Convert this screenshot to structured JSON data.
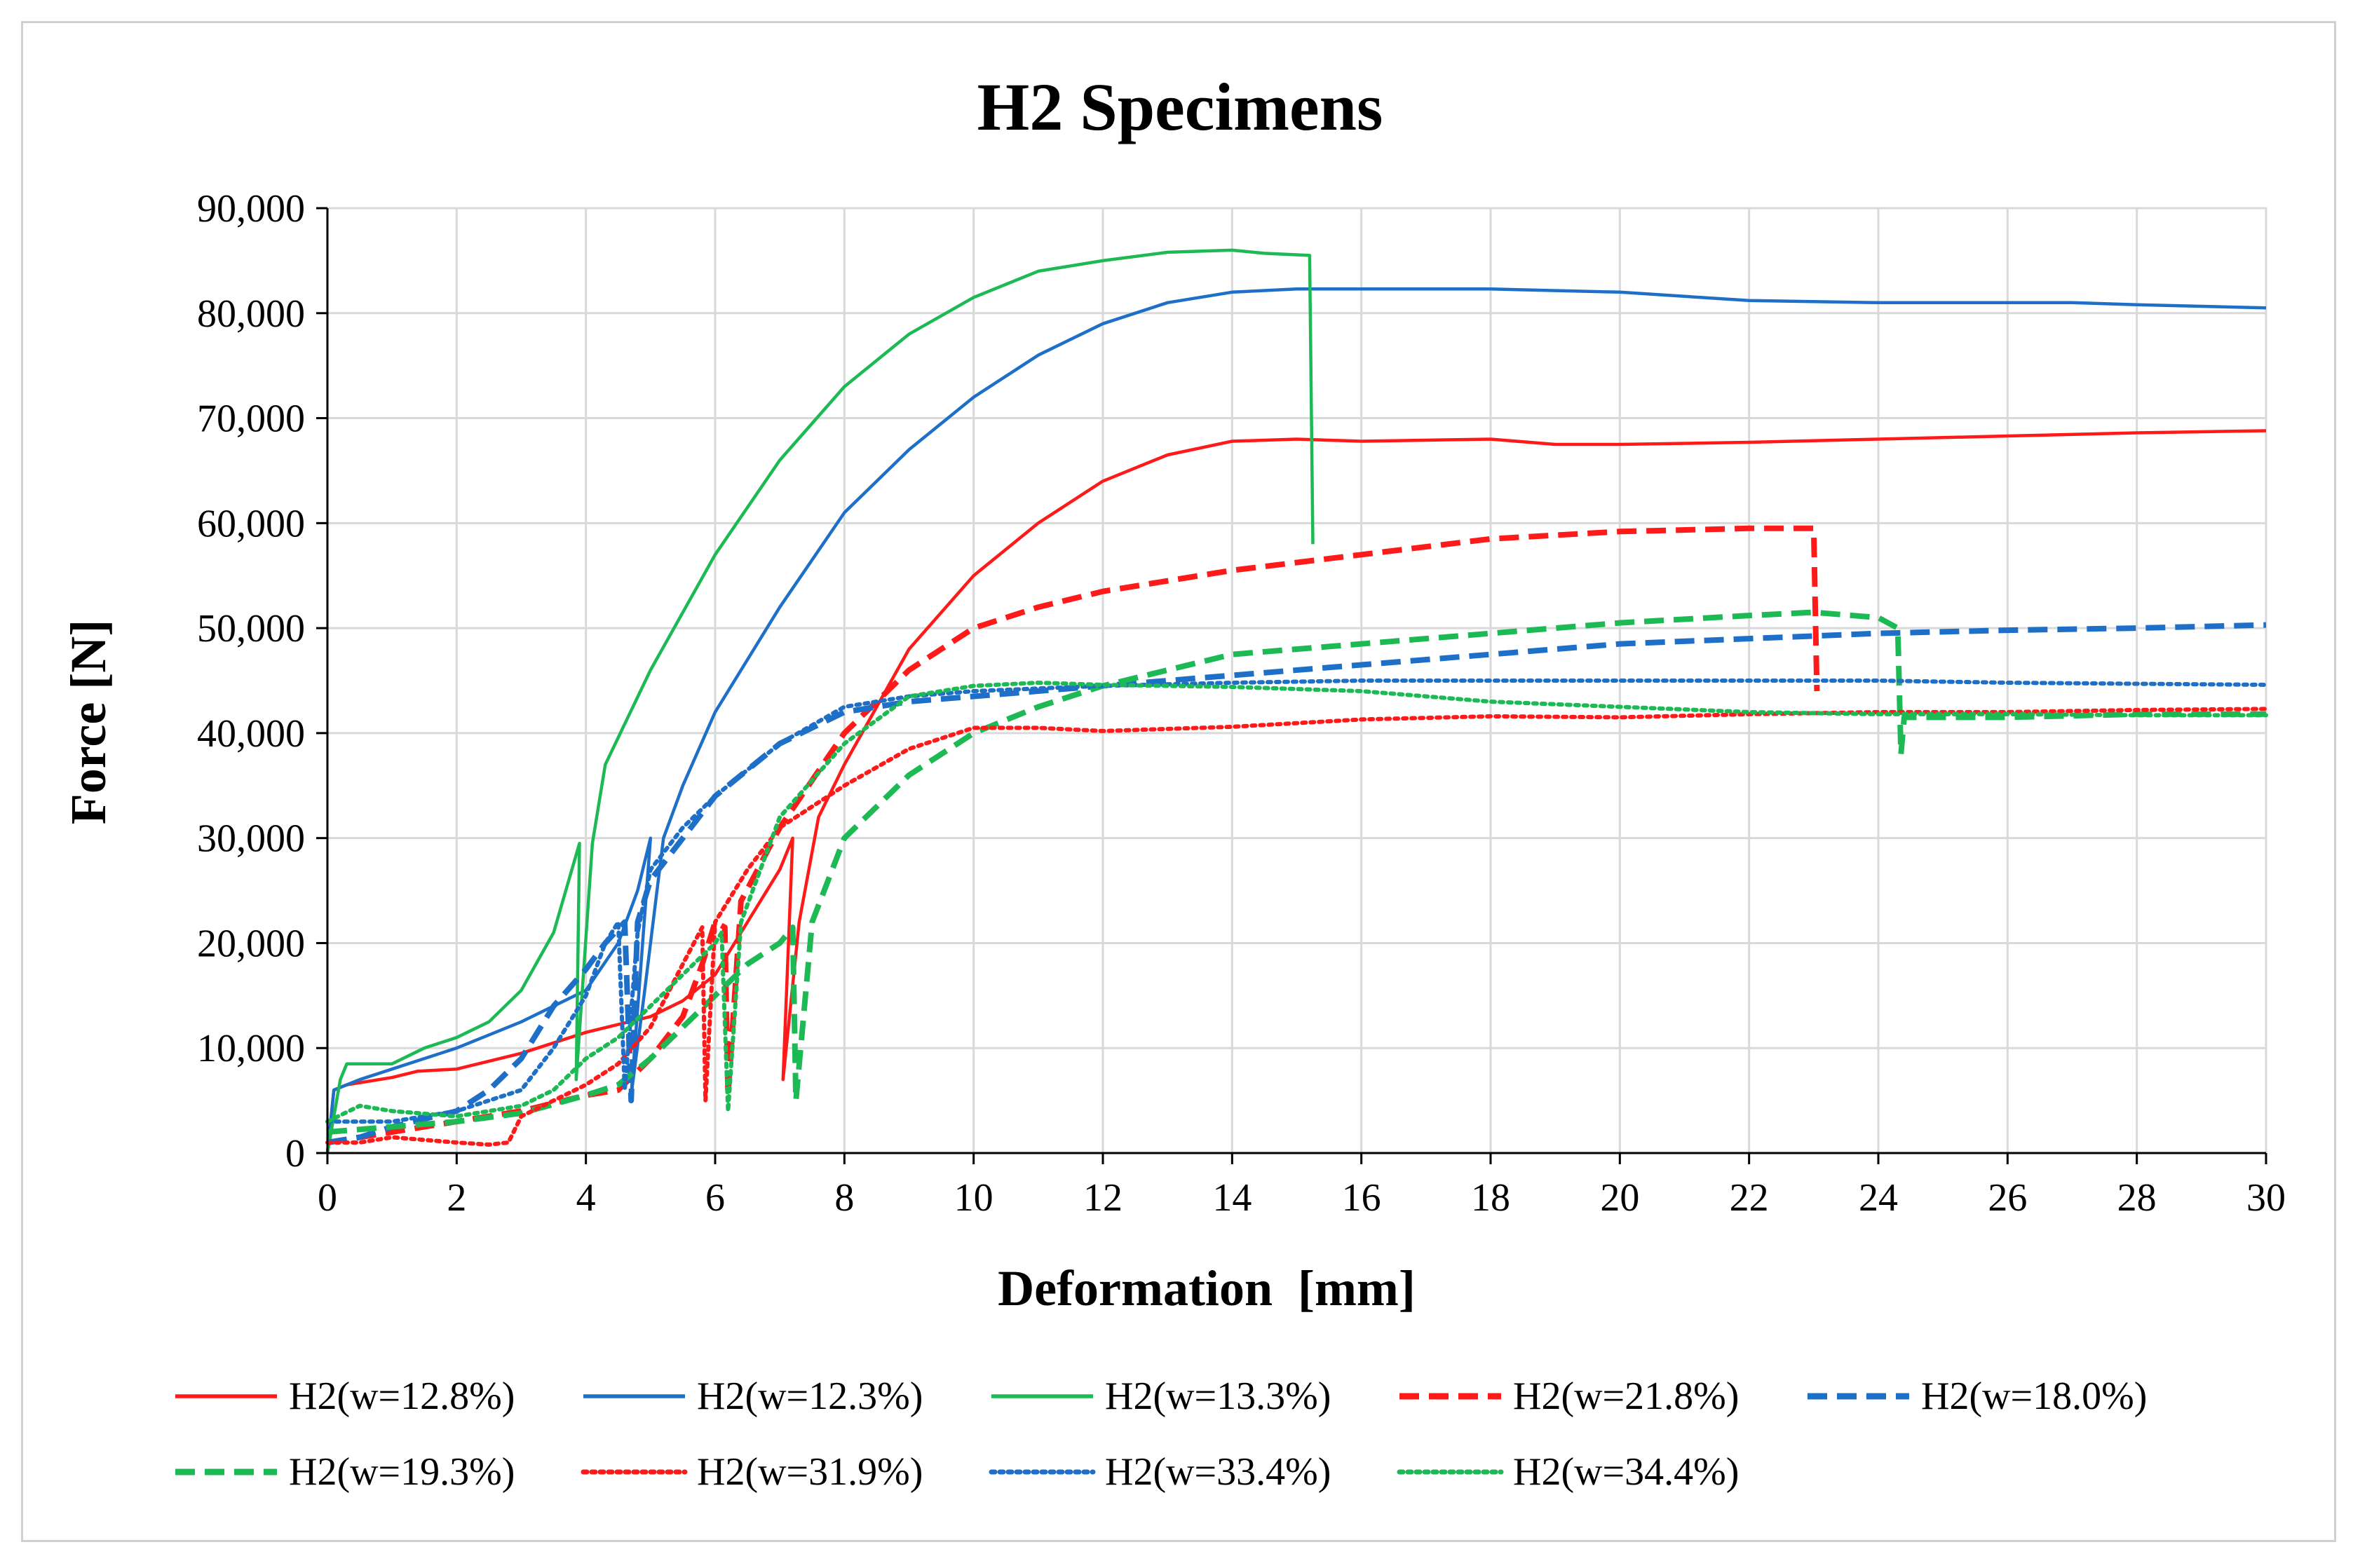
{
  "chart_data": {
    "type": "line",
    "title": "H2 Specimens",
    "xlabel": "Deformation  [mm]",
    "ylabel": "Force [N]",
    "xlim": [
      0,
      30
    ],
    "ylim": [
      0,
      90000
    ],
    "grid": true,
    "legend_position": "bottom",
    "x_ticks": [
      0,
      2,
      4,
      6,
      8,
      10,
      12,
      14,
      16,
      18,
      20,
      22,
      24,
      26,
      28,
      30
    ],
    "y_ticks": [
      0,
      10000,
      20000,
      30000,
      40000,
      50000,
      60000,
      70000,
      80000,
      90000
    ],
    "y_tick_labels": [
      "0",
      "10,000",
      "20,000",
      "30,000",
      "40,000",
      "50,000",
      "60,000",
      "70,000",
      "80,000",
      "90,000"
    ],
    "series": [
      {
        "name": "H2(w=12.8%)",
        "color": "#ff1a1a",
        "dash": "solid",
        "points": [
          [
            0,
            0
          ],
          [
            0.1,
            6000
          ],
          [
            0.3,
            6500
          ],
          [
            1,
            7200
          ],
          [
            1.4,
            7800
          ],
          [
            2,
            8000
          ],
          [
            3,
            9500
          ],
          [
            4,
            11500
          ],
          [
            5,
            13000
          ],
          [
            5.5,
            14500
          ],
          [
            6,
            17000
          ],
          [
            6.5,
            22000
          ],
          [
            7,
            27000
          ],
          [
            7.2,
            30000
          ],
          [
            7.05,
            7000
          ],
          [
            7.3,
            22000
          ],
          [
            7.6,
            32000
          ],
          [
            8,
            37000
          ],
          [
            9,
            48000
          ],
          [
            10,
            55000
          ],
          [
            11,
            60000
          ],
          [
            12,
            64000
          ],
          [
            13,
            66500
          ],
          [
            14,
            67800
          ],
          [
            15,
            68000
          ],
          [
            16,
            67800
          ],
          [
            18,
            68000
          ],
          [
            19,
            67500
          ],
          [
            20,
            67500
          ],
          [
            22,
            67700
          ],
          [
            24,
            68000
          ],
          [
            26,
            68300
          ],
          [
            28,
            68600
          ],
          [
            30,
            68800
          ]
        ]
      },
      {
        "name": "H2(w=12.3%)",
        "color": "#1e6fc8",
        "dash": "solid",
        "points": [
          [
            0,
            0
          ],
          [
            0.1,
            6000
          ],
          [
            0.5,
            7000
          ],
          [
            1,
            8000
          ],
          [
            2,
            10000
          ],
          [
            3,
            12500
          ],
          [
            4,
            15500
          ],
          [
            4.5,
            20000
          ],
          [
            4.8,
            25000
          ],
          [
            5,
            30000
          ],
          [
            4.7,
            5500
          ],
          [
            4.9,
            15000
          ],
          [
            5.2,
            30000
          ],
          [
            5.5,
            35000
          ],
          [
            6,
            42000
          ],
          [
            7,
            52000
          ],
          [
            8,
            61000
          ],
          [
            9,
            67000
          ],
          [
            10,
            72000
          ],
          [
            11,
            76000
          ],
          [
            12,
            79000
          ],
          [
            13,
            81000
          ],
          [
            14,
            82000
          ],
          [
            15,
            82300
          ],
          [
            16,
            82300
          ],
          [
            18,
            82300
          ],
          [
            20,
            82000
          ],
          [
            22,
            81200
          ],
          [
            24,
            81000
          ],
          [
            26,
            81000
          ],
          [
            27,
            81000
          ],
          [
            28,
            80800
          ],
          [
            30,
            80500
          ]
        ]
      },
      {
        "name": "H2(w=13.3%)",
        "color": "#1db954",
        "dash": "solid",
        "points": [
          [
            0,
            0
          ],
          [
            0.2,
            7000
          ],
          [
            0.3,
            8500
          ],
          [
            1,
            8500
          ],
          [
            1.5,
            10000
          ],
          [
            2,
            11000
          ],
          [
            2.5,
            12500
          ],
          [
            3,
            15500
          ],
          [
            3.5,
            21000
          ],
          [
            3.9,
            29500
          ],
          [
            3.85,
            7000
          ],
          [
            4.1,
            29500
          ],
          [
            4.3,
            37000
          ],
          [
            5,
            46000
          ],
          [
            6,
            57000
          ],
          [
            7,
            66000
          ],
          [
            8,
            73000
          ],
          [
            9,
            78000
          ],
          [
            10,
            81500
          ],
          [
            11,
            84000
          ],
          [
            12,
            85000
          ],
          [
            13,
            85800
          ],
          [
            14,
            86000
          ],
          [
            14.5,
            85700
          ],
          [
            15.2,
            85500
          ],
          [
            15.25,
            58000
          ]
        ]
      },
      {
        "name": "H2(w=21.8%)",
        "color": "#ff1a1a",
        "dash": "dashed",
        "points": [
          [
            0,
            1000
          ],
          [
            0.5,
            1500
          ],
          [
            1,
            2000
          ],
          [
            2,
            3000
          ],
          [
            3,
            4000
          ],
          [
            4,
            5500
          ],
          [
            4.5,
            6000
          ],
          [
            5,
            9000
          ],
          [
            5.5,
            13000
          ],
          [
            5.8,
            18000
          ],
          [
            6,
            22000
          ],
          [
            6.15,
            21500
          ],
          [
            6.2,
            5500
          ],
          [
            6.4,
            24000
          ],
          [
            7,
            31000
          ],
          [
            8,
            40000
          ],
          [
            9,
            46000
          ],
          [
            10,
            50000
          ],
          [
            11,
            52000
          ],
          [
            12,
            53500
          ],
          [
            14,
            55500
          ],
          [
            16,
            57000
          ],
          [
            18,
            58500
          ],
          [
            20,
            59200
          ],
          [
            22,
            59500
          ],
          [
            23,
            59500
          ],
          [
            23.05,
            44000
          ]
        ]
      },
      {
        "name": "H2(w=18.0%)",
        "color": "#1e6fc8",
        "dash": "dashed",
        "points": [
          [
            0,
            1000
          ],
          [
            0.5,
            1500
          ],
          [
            1,
            2500
          ],
          [
            2,
            4000
          ],
          [
            2.5,
            6000
          ],
          [
            3,
            9000
          ],
          [
            3.5,
            14000
          ],
          [
            4,
            17500
          ],
          [
            4.3,
            20000
          ],
          [
            4.6,
            22000
          ],
          [
            4.7,
            5000
          ],
          [
            4.8,
            22000
          ],
          [
            5,
            26000
          ],
          [
            5.5,
            30000
          ],
          [
            6,
            34000
          ],
          [
            7,
            39000
          ],
          [
            8,
            42000
          ],
          [
            9,
            43000
          ],
          [
            10,
            43500
          ],
          [
            12,
            44500
          ],
          [
            14,
            45500
          ],
          [
            16,
            46500
          ],
          [
            18,
            47500
          ],
          [
            20,
            48500
          ],
          [
            22,
            49000
          ],
          [
            24,
            49500
          ],
          [
            26,
            49800
          ],
          [
            28,
            50000
          ],
          [
            30,
            50300
          ]
        ]
      },
      {
        "name": "H2(w=19.3%)",
        "color": "#1db954",
        "dash": "dashed",
        "points": [
          [
            0,
            2000
          ],
          [
            1,
            2500
          ],
          [
            2,
            3000
          ],
          [
            3,
            3800
          ],
          [
            4,
            5500
          ],
          [
            4.5,
            6500
          ],
          [
            5,
            9000
          ],
          [
            5.5,
            12000
          ],
          [
            6,
            15000
          ],
          [
            6.5,
            18000
          ],
          [
            7,
            20000
          ],
          [
            7.2,
            21500
          ],
          [
            7.25,
            5000
          ],
          [
            7.5,
            22000
          ],
          [
            8,
            30000
          ],
          [
            9,
            36000
          ],
          [
            10,
            40000
          ],
          [
            11,
            42500
          ],
          [
            12,
            44500
          ],
          [
            13,
            46000
          ],
          [
            14,
            47500
          ],
          [
            16,
            48500
          ],
          [
            18,
            49500
          ],
          [
            20,
            50500
          ],
          [
            22,
            51200
          ],
          [
            23,
            51500
          ],
          [
            24,
            51000
          ],
          [
            24.3,
            50000
          ],
          [
            24.35,
            38000
          ],
          [
            24.4,
            41500
          ],
          [
            26,
            41500
          ],
          [
            28,
            41800
          ],
          [
            30,
            41800
          ]
        ]
      },
      {
        "name": "H2(w=31.9%)",
        "color": "#ff1a1a",
        "dash": "dotted",
        "points": [
          [
            0,
            1000
          ],
          [
            0.5,
            1000
          ],
          [
            1,
            1500
          ],
          [
            2,
            1000
          ],
          [
            2.5,
            800
          ],
          [
            2.8,
            1000
          ],
          [
            3,
            3500
          ],
          [
            3.5,
            5000
          ],
          [
            4,
            6500
          ],
          [
            4.5,
            8500
          ],
          [
            5,
            12000
          ],
          [
            5.5,
            18000
          ],
          [
            5.8,
            21500
          ],
          [
            5.85,
            5000
          ],
          [
            6,
            22000
          ],
          [
            6.5,
            27000
          ],
          [
            7,
            31000
          ],
          [
            8,
            35000
          ],
          [
            9,
            38500
          ],
          [
            10,
            40500
          ],
          [
            11,
            40500
          ],
          [
            12,
            40200
          ],
          [
            14,
            40600
          ],
          [
            16,
            41300
          ],
          [
            18,
            41600
          ],
          [
            20,
            41500
          ],
          [
            22,
            41800
          ],
          [
            24,
            42000
          ],
          [
            26,
            42000
          ],
          [
            28,
            42200
          ],
          [
            30,
            42300
          ]
        ]
      },
      {
        "name": "H2(w=33.4%)",
        "color": "#1e6fc8",
        "dash": "dotted",
        "points": [
          [
            0,
            3000
          ],
          [
            1,
            3000
          ],
          [
            2,
            4000
          ],
          [
            3,
            6000
          ],
          [
            3.5,
            10000
          ],
          [
            4,
            15000
          ],
          [
            4.3,
            20000
          ],
          [
            4.5,
            22000
          ],
          [
            4.6,
            6000
          ],
          [
            4.8,
            21000
          ],
          [
            5,
            27000
          ],
          [
            5.5,
            31000
          ],
          [
            6,
            34000
          ],
          [
            7,
            39000
          ],
          [
            8,
            42500
          ],
          [
            9,
            43500
          ],
          [
            10,
            44000
          ],
          [
            12,
            44500
          ],
          [
            14,
            44800
          ],
          [
            16,
            45000
          ],
          [
            18,
            45000
          ],
          [
            20,
            45000
          ],
          [
            22,
            45000
          ],
          [
            24,
            45000
          ],
          [
            26,
            44800
          ],
          [
            28,
            44700
          ],
          [
            30,
            44600
          ]
        ]
      },
      {
        "name": "H2(w=34.4%)",
        "color": "#1db954",
        "dash": "dotted",
        "points": [
          [
            0,
            3000
          ],
          [
            0.5,
            4500
          ],
          [
            1,
            4000
          ],
          [
            2,
            3500
          ],
          [
            3,
            4500
          ],
          [
            3.5,
            6000
          ],
          [
            4,
            9000
          ],
          [
            4.5,
            11000
          ],
          [
            5,
            14000
          ],
          [
            5.5,
            17000
          ],
          [
            6,
            20000
          ],
          [
            6.1,
            21000
          ],
          [
            6.2,
            4000
          ],
          [
            6.4,
            22000
          ],
          [
            7,
            32000
          ],
          [
            8,
            39000
          ],
          [
            9,
            43500
          ],
          [
            10,
            44500
          ],
          [
            11,
            44800
          ],
          [
            12,
            44600
          ],
          [
            14,
            44400
          ],
          [
            16,
            44000
          ],
          [
            18,
            43000
          ],
          [
            20,
            42500
          ],
          [
            22,
            42000
          ],
          [
            24,
            41800
          ],
          [
            26,
            41800
          ],
          [
            28,
            41700
          ],
          [
            30,
            41700
          ]
        ]
      }
    ]
  }
}
